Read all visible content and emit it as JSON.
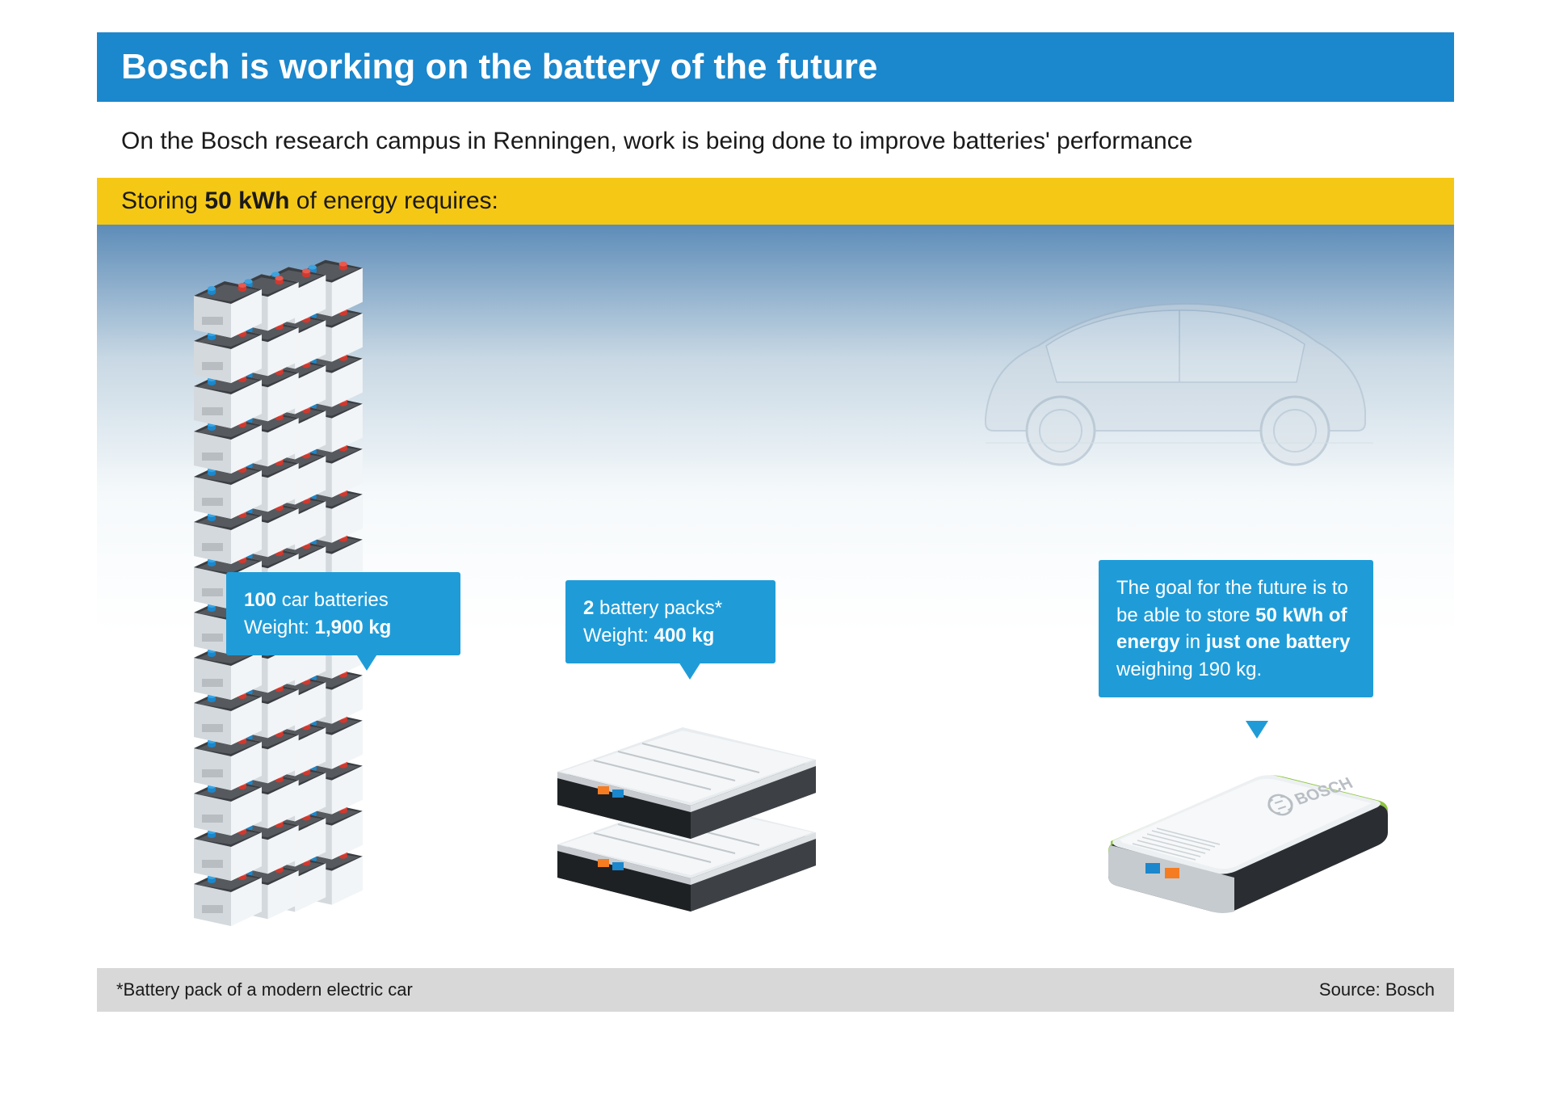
{
  "title": "Bosch is working on the battery of the future",
  "subtitle": "On the Bosch research campus in Renningen, work is being done to improve batteries' performance",
  "yellowBar": {
    "pre": "Storing ",
    "bold": "50 kWh",
    "post": " of energy requires:"
  },
  "callout1": {
    "line1_bold": "100",
    "line1_rest": " car batteries",
    "line2_pre": "Weight: ",
    "line2_bold": "1,900 kg"
  },
  "callout2": {
    "line1_bold": "2",
    "line1_rest": " battery packs*",
    "line2_pre": "Weight: ",
    "line2_bold": "400 kg"
  },
  "callout3": {
    "text1": "The goal for the future is to be able to store ",
    "bold1": "50 kWh of energy",
    "text2": " in ",
    "bold2": "just one battery",
    "text3": " weighing 190 kg."
  },
  "footer": {
    "note": "*Battery pack of a modern electric car",
    "source": "Source:  Bosch"
  },
  "colors": {
    "titleBg": "#1b87cc",
    "yellowBg": "#f5c816",
    "calloutBg": "#1f9cd8",
    "footerBg": "#d8d8d8",
    "text": "#1a1a1a",
    "white": "#ffffff",
    "batteryLight": "#e8ecef",
    "batteryDark": "#3a3e42",
    "batteryMid": "#c8ccd0",
    "green": "#8dc63f",
    "orange": "#f57c20",
    "blue": "#1b87cc",
    "red": "#d0392f"
  },
  "type": "infographic",
  "stack": {
    "cols": 4,
    "rowsVisible": 14
  },
  "brand": "BOSCH"
}
